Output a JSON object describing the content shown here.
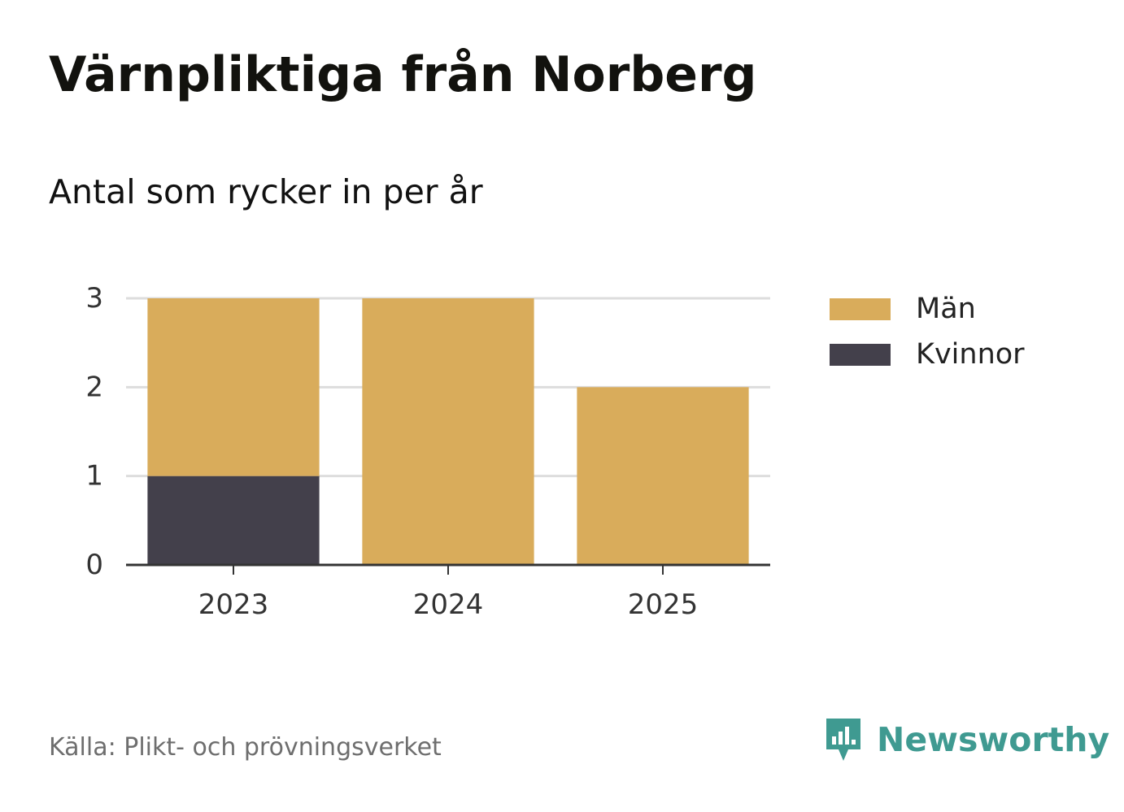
{
  "title": "Värnpliktiga från Norberg",
  "subtitle": "Antal som rycker in per år",
  "source": "Källa: Plikt- och prövningsverket",
  "brand": {
    "name": "Newsworthy",
    "icon": "newsworthy-logo-icon",
    "color": "#3f9a91"
  },
  "colors": {
    "men": "#d9ac5b",
    "women": "#43404b",
    "grid": "#dddddd",
    "axis": "#333333"
  },
  "chart_data": {
    "type": "bar",
    "stacked": true,
    "categories": [
      "2023",
      "2024",
      "2025"
    ],
    "series": [
      {
        "name": "Kvinnor",
        "color": "#43404b",
        "values": [
          1,
          0,
          0
        ]
      },
      {
        "name": "Män",
        "color": "#d9ac5b",
        "values": [
          2,
          3,
          2
        ]
      }
    ],
    "title": "Värnpliktiga från Norberg",
    "subtitle": "Antal som rycker in per år",
    "ylim": [
      0,
      3
    ],
    "yticks": [
      0,
      1,
      2,
      3
    ],
    "grid": true,
    "legend_position": "right",
    "legend": [
      "Män",
      "Kvinnor"
    ]
  }
}
